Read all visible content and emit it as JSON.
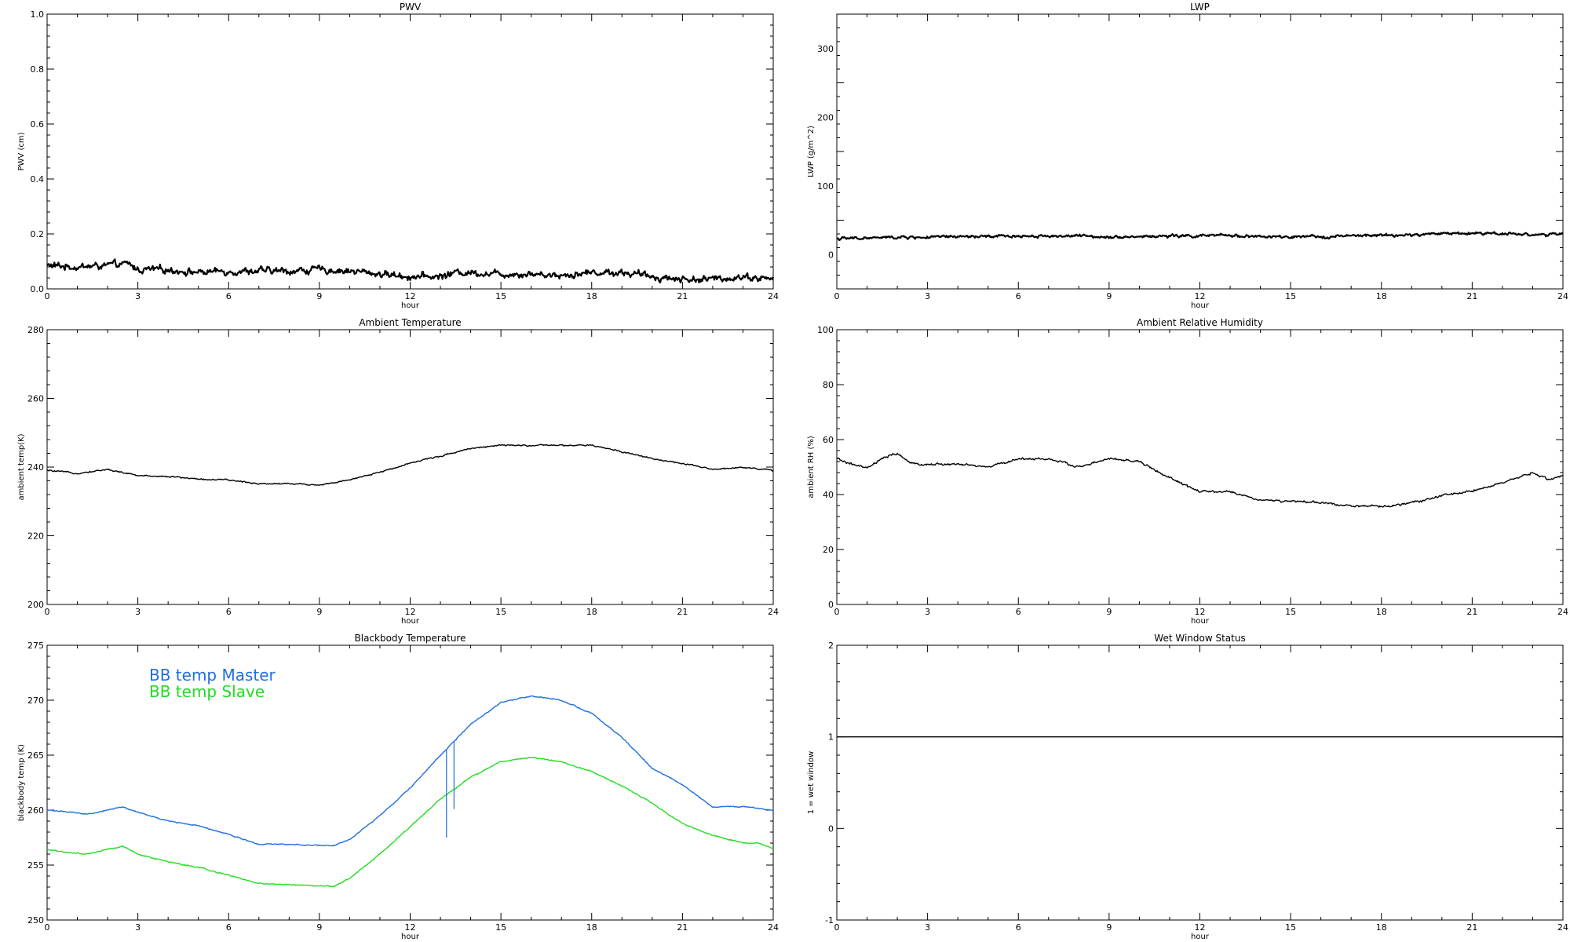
{
  "chart_data": [
    {
      "type": "line",
      "title": "PWV",
      "xlabel": "hour",
      "ylabel": "PWV (cm)",
      "xlim": [
        0,
        24
      ],
      "ylim": [
        0,
        1.0
      ],
      "xticks": [
        0,
        3,
        6,
        9,
        12,
        15,
        18,
        21,
        24
      ],
      "yticks": [
        0,
        0.2,
        0.4,
        0.6,
        0.8,
        1.0
      ],
      "ytick_labels": [
        "0.0",
        "0.2",
        "0.4",
        "0.6",
        "0.8",
        "1.0"
      ],
      "color": "#000000",
      "noise": 0.012,
      "series": [
        {
          "x": [
            0,
            1,
            2,
            2.7,
            3,
            4,
            5,
            6,
            7,
            8,
            9,
            10,
            11,
            12,
            13,
            13.5,
            14,
            15,
            16,
            17,
            18,
            19,
            20,
            21,
            22,
            23,
            23.5,
            24
          ],
          "values": [
            0.085,
            0.08,
            0.085,
            0.09,
            0.07,
            0.07,
            0.06,
            0.065,
            0.065,
            0.065,
            0.07,
            0.065,
            0.055,
            0.045,
            0.045,
            0.06,
            0.06,
            0.055,
            0.055,
            0.05,
            0.06,
            0.06,
            0.045,
            0.035,
            0.035,
            0.045,
            0.04,
            0.035
          ]
        }
      ]
    },
    {
      "type": "line",
      "title": "LWP",
      "xlabel": "hour",
      "ylabel": "LWP (g/m^2)",
      "xlim": [
        0,
        24
      ],
      "ylim": [
        -50,
        350
      ],
      "xticks": [
        0,
        3,
        6,
        9,
        12,
        15,
        18,
        21,
        24
      ],
      "yticks": [
        0,
        100,
        200,
        300
      ],
      "ytick_labels": [
        "0",
        "100",
        "200",
        "300"
      ],
      "color": "#000000",
      "noise": 2,
      "series": [
        {
          "x": [
            0,
            1,
            2,
            3,
            4,
            5,
            6,
            7,
            8,
            9,
            10,
            11,
            12,
            13,
            14,
            15,
            16,
            17,
            18,
            19,
            20,
            21,
            22,
            23,
            24
          ],
          "values": [
            23,
            24,
            25,
            25,
            26,
            26,
            27,
            27,
            27,
            26,
            26,
            27,
            27,
            28,
            26,
            25,
            26,
            27,
            28,
            28,
            31,
            31,
            31,
            29,
            29
          ]
        }
      ]
    },
    {
      "type": "line",
      "title": "Ambient Temperature",
      "xlabel": "hour",
      "ylabel": "ambient temp(K)",
      "xlim": [
        0,
        24
      ],
      "ylim": [
        200,
        280
      ],
      "xticks": [
        0,
        3,
        6,
        9,
        12,
        15,
        18,
        21,
        24
      ],
      "yticks": [
        200,
        220,
        240,
        260,
        280
      ],
      "ytick_labels": [
        "200",
        "220",
        "240",
        "260",
        "280"
      ],
      "color": "#000000",
      "noise": 0.2,
      "series": [
        {
          "x": [
            0,
            1,
            2,
            3,
            4,
            5,
            6,
            7,
            8,
            9,
            10,
            11,
            12,
            13,
            14,
            15,
            16,
            17,
            18,
            19,
            20,
            21,
            22,
            23,
            24
          ],
          "values": [
            239,
            238.2,
            239.3,
            237.5,
            237.3,
            236.5,
            236.2,
            235.2,
            235.2,
            234.8,
            236.2,
            238.5,
            241.2,
            243.2,
            245.5,
            246.3,
            246.3,
            246.3,
            246.3,
            244.5,
            242.5,
            241,
            239.3,
            240,
            239
          ]
        }
      ]
    },
    {
      "type": "line",
      "title": "Ambient Relative Humidity",
      "xlabel": "hour",
      "ylabel": "ambient RH (%)",
      "xlim": [
        0,
        24
      ],
      "ylim": [
        0,
        100
      ],
      "xticks": [
        0,
        3,
        6,
        9,
        12,
        15,
        18,
        21,
        24
      ],
      "yticks": [
        0,
        20,
        40,
        60,
        80,
        100
      ],
      "ytick_labels": [
        "0",
        "20",
        "40",
        "60",
        "80",
        "100"
      ],
      "color": "#000000",
      "noise": 0.4,
      "series": [
        {
          "x": [
            0,
            0.5,
            1,
            1.5,
            2,
            2.5,
            3,
            4,
            5,
            6,
            7,
            8,
            9,
            10,
            11,
            12,
            13,
            14,
            15,
            16,
            17,
            18,
            19,
            20,
            21,
            22,
            23,
            23.5,
            24
          ],
          "values": [
            53,
            51,
            49.5,
            53,
            55,
            51,
            51,
            51,
            50,
            53,
            53,
            50,
            53,
            52,
            46,
            41,
            41,
            38,
            37.5,
            37,
            36,
            35.5,
            37,
            39.5,
            41.5,
            44,
            48,
            45.5,
            47
          ]
        }
      ]
    },
    {
      "type": "line",
      "title": "Blackbody Temperature",
      "xlabel": "hour",
      "ylabel": "blackbody temp (K)",
      "xlim": [
        0,
        24
      ],
      "ylim": [
        250,
        275
      ],
      "xticks": [
        0,
        3,
        6,
        9,
        12,
        15,
        18,
        21,
        24
      ],
      "yticks": [
        250,
        255,
        260,
        265,
        270,
        275
      ],
      "ytick_labels": [
        "250",
        "255",
        "260",
        "265",
        "270",
        "275"
      ],
      "noise": 0.05,
      "legend": [
        "BB temp Master",
        "BB temp Slave"
      ],
      "legend_position": "top-left",
      "series": [
        {
          "name": "BB temp Master",
          "color": "#1f6fe0",
          "x": [
            0,
            0.5,
            1.3,
            2.5,
            3,
            4,
            5,
            6,
            7,
            8,
            9,
            9.5,
            10,
            11,
            12,
            13,
            14,
            15,
            16,
            17,
            18,
            19,
            20,
            21,
            22,
            23,
            23.5,
            24
          ],
          "values": [
            260,
            259.9,
            259.6,
            260.3,
            259.8,
            259,
            258.6,
            257.8,
            256.9,
            256.9,
            256.8,
            256.8,
            257.3,
            259.5,
            262,
            265,
            267.8,
            269.8,
            270.4,
            270,
            268.8,
            266.6,
            263.8,
            262.3,
            260.3,
            260.3,
            260.2,
            260
          ]
        },
        {
          "name": "BB temp Slave",
          "color": "#22dd22",
          "x": [
            0,
            0.5,
            1.3,
            2.5,
            3,
            4,
            5,
            6,
            7,
            8,
            9,
            9.5,
            10,
            11,
            12,
            13,
            14,
            15,
            16,
            17,
            18,
            19,
            20,
            21,
            22,
            23,
            23.5,
            24
          ],
          "values": [
            256.4,
            256.2,
            256,
            256.7,
            256,
            255.3,
            254.8,
            254.1,
            253.3,
            253.2,
            253.1,
            253.1,
            253.8,
            256,
            258.5,
            261,
            263,
            264.4,
            264.8,
            264.4,
            263.5,
            262.2,
            260.6,
            258.8,
            257.7,
            257,
            257,
            256.5
          ]
        }
      ],
      "spikes": [
        {
          "x": 13.2,
          "y_from": 265.5,
          "y_to": 257.5
        },
        {
          "x": 13.45,
          "y_from": 266.3,
          "y_to": 260.1
        }
      ]
    },
    {
      "type": "line",
      "title": "Wet Window Status",
      "xlabel": "hour",
      "ylabel": "1 = wet window",
      "xlim": [
        0,
        24
      ],
      "ylim": [
        -1,
        2
      ],
      "xticks": [
        0,
        3,
        6,
        9,
        12,
        15,
        18,
        21,
        24
      ],
      "yticks": [
        -1,
        0,
        1,
        2
      ],
      "ytick_labels": [
        "-1",
        "0",
        "1",
        "2"
      ],
      "color": "#000000",
      "noise": 0,
      "series": [
        {
          "x": [
            0,
            24
          ],
          "values": [
            1,
            1
          ]
        }
      ]
    }
  ]
}
